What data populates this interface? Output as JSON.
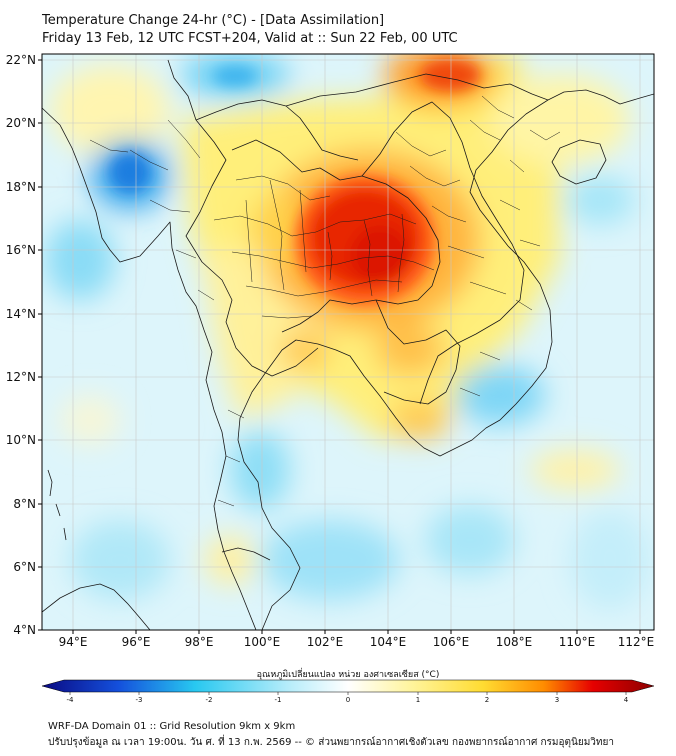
{
  "header": {
    "title_line1": "Temperature Change 24-hr (°C) - [Data Assimilation]",
    "title_line2": "Friday 13 Feb, 12 UTC FCST+204, Valid at :: Sun 22 Feb, 00 UTC"
  },
  "map": {
    "lat_labels": [
      "22°N",
      "20°N",
      "18°N",
      "16°N",
      "14°N",
      "12°N",
      "10°N",
      "8°N",
      "6°N",
      "4°N"
    ],
    "lon_labels": [
      "94°E",
      "96°E",
      "98°E",
      "100°E",
      "102°E",
      "104°E",
      "106°E",
      "108°E",
      "110°E",
      "112°E"
    ],
    "lon_range": [
      93,
      112.5
    ],
    "lat_range": [
      4,
      22.3
    ],
    "features": [
      {
        "name": "warm-core-northeast-thailand",
        "lon": 103.3,
        "lat": 16.3,
        "delta_c": 3.2
      },
      {
        "name": "warm-north-vietnam",
        "lon": 105.6,
        "lat": 21.5,
        "delta_c": 2.6
      },
      {
        "name": "cool-myanmar-west",
        "lon": 95.8,
        "lat": 18.5,
        "delta_c": -1.8
      },
      {
        "name": "cool-upper-myanmar",
        "lon": 99.0,
        "lat": 21.6,
        "delta_c": -1.4
      },
      {
        "name": "cool-south-china-sea",
        "lon": 109.5,
        "lat": 11.2,
        "delta_c": -1.1
      },
      {
        "name": "cool-gulf-of-thailand",
        "lon": 101.5,
        "lat": 8.5,
        "delta_c": -0.8
      }
    ]
  },
  "colorbar": {
    "label": "อุณหภูมิเปลี่ยนแปลง หน่วย องศาเซลเซียส (°C)",
    "ticks": [
      "-4",
      "-3",
      "-2",
      "-1",
      "0",
      "1",
      "2",
      "3",
      "4"
    ],
    "min": -4,
    "max": 4,
    "colors": {
      "deep_blue": "#0a0a82",
      "blue": "#1450dc",
      "cyan": "#28c8f0",
      "light_cyan": "#b4ecfa",
      "white": "#ffffff",
      "light_yellow": "#fff5a0",
      "yellow": "#ffdc32",
      "orange": "#ff8c00",
      "red": "#e60000",
      "dark_red": "#8c0000"
    }
  },
  "footer": {
    "line1": "WRF-DA Domain 01 :: Grid Resolution 9km x 9km",
    "line2": "ปรับปรุงข้อมูล ณ เวลา 19:00น. วัน ศ. ที่ 13 ก.พ. 2569 -- © ส่วนพยากรณ์อากาศเชิงตัวเลข กองพยากรณ์อากาศ กรมอุตุนิยมวิทยา"
  }
}
